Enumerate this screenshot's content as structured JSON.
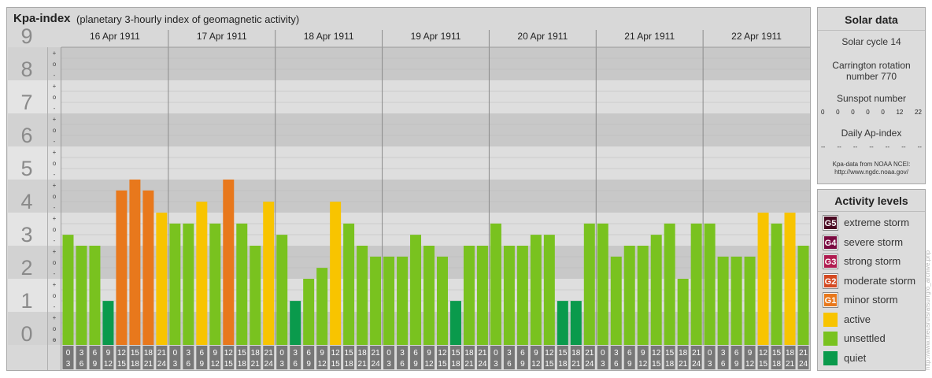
{
  "header": {
    "title": "Kpa-index",
    "subtitle": "(planetary 3-hourly index of geomagnetic activity)"
  },
  "chart_data": {
    "type": "bar",
    "ylim": [
      0,
      9
    ],
    "y_ticks": [
      "0",
      "1",
      "2",
      "3",
      "4",
      "5",
      "6",
      "7",
      "8",
      "9"
    ],
    "sub_ticks": [
      "+",
      "o",
      "-"
    ],
    "days": [
      "16 Apr 1911",
      "17 Apr 1911",
      "18 Apr 1911",
      "19 Apr 1911",
      "20 Apr 1911",
      "21 Apr 1911",
      "22 Apr 1911"
    ],
    "interval_start": [
      "0",
      "3",
      "6",
      "9",
      "12",
      "15",
      "18",
      "21"
    ],
    "interval_end": [
      "3",
      "6",
      "9",
      "12",
      "15",
      "18",
      "21",
      "24"
    ],
    "values": [
      [
        3.33,
        3.0,
        3.0,
        1.33,
        4.67,
        5.0,
        4.67,
        4.0
      ],
      [
        3.67,
        3.67,
        4.33,
        3.67,
        5.0,
        3.67,
        3.0,
        4.33
      ],
      [
        3.33,
        1.33,
        2.0,
        2.33,
        4.33,
        3.67,
        3.0,
        2.67
      ],
      [
        2.67,
        2.67,
        3.33,
        3.0,
        2.67,
        1.33,
        3.0,
        3.0
      ],
      [
        3.67,
        3.0,
        3.0,
        3.33,
        3.33,
        1.33,
        1.33,
        3.67
      ],
      [
        3.67,
        2.67,
        3.0,
        3.0,
        3.33,
        3.67,
        2.0,
        3.67
      ],
      [
        3.67,
        2.67,
        2.67,
        2.67,
        4.0,
        3.67,
        4.0,
        3.0
      ]
    ],
    "colors": {
      "quiet": "#0a9a4c",
      "unsettled": "#79c21f",
      "active": "#f8c400",
      "G1": "#e8781c",
      "G2": "#d44a22",
      "G3": "#b01c50",
      "G4": "#7a0a40",
      "G5": "#4a0a22"
    }
  },
  "solar": {
    "title": "Solar data",
    "cycle": "Solar cycle 14",
    "carrington_line1": "Carrington rotation",
    "carrington_line2": "number 770",
    "sunspot_title": "Sunspot number",
    "sunspot_values": [
      "0",
      "0",
      "0",
      "0",
      "0",
      "12",
      "22"
    ],
    "ap_title": "Daily Ap-index",
    "ap_values": [
      "--",
      "--",
      "--",
      "--",
      "--",
      "--",
      "--"
    ],
    "source_line1": "Kpa-data from NOAA NCEI:",
    "source_line2": "http://www.ngdc.noaa.gov/"
  },
  "levels": {
    "title": "Activity levels",
    "items": [
      {
        "badge": "G5",
        "label": "extreme storm",
        "color": "#4a0a22"
      },
      {
        "badge": "G4",
        "label": "severe storm",
        "color": "#7a0a40"
      },
      {
        "badge": "G3",
        "label": "strong storm",
        "color": "#b01c50"
      },
      {
        "badge": "G2",
        "label": "moderate storm",
        "color": "#d44a22"
      },
      {
        "badge": "G1",
        "label": "minor storm",
        "color": "#e8781c"
      },
      {
        "badge": "",
        "label": "active",
        "color": "#f8c400"
      },
      {
        "badge": "",
        "label": "unsettled",
        "color": "#79c21f"
      },
      {
        "badge": "",
        "label": "quiet",
        "color": "#0a9a4c"
      }
    ]
  },
  "watermark": "http://www.theusrufsrafsurrgfo_archive.php"
}
